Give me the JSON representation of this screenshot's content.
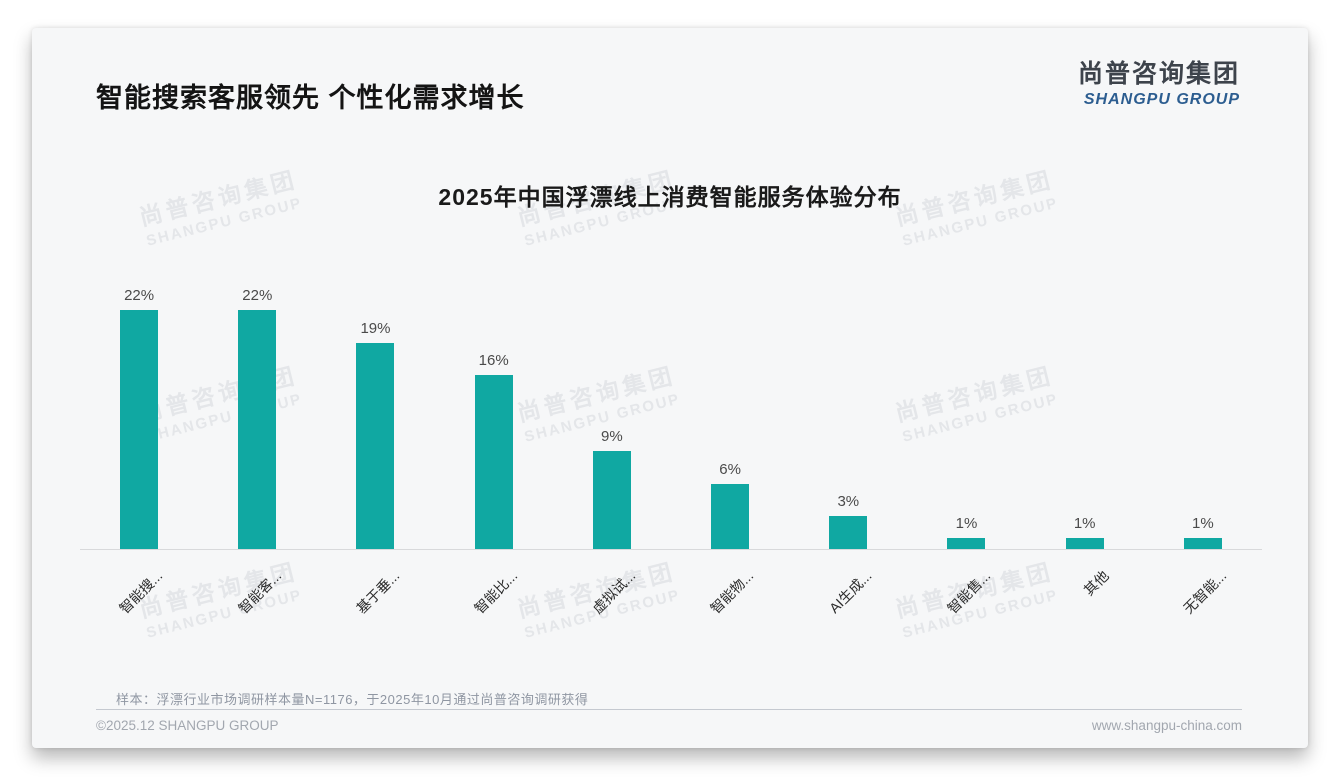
{
  "header": {
    "title": "智能搜索客服领先 个性化需求增长",
    "logo_cn": "尚普咨询集团",
    "logo_en": "SHANGPU GROUP"
  },
  "watermark": {
    "line1": "尚普咨询集团",
    "line2": "SHANGPU GROUP"
  },
  "chart_data": {
    "type": "bar",
    "title": "2025年中国浮漂线上消费智能服务体验分布",
    "categories": [
      "智能搜...",
      "智能客...",
      "基于垂...",
      "智能比...",
      "虚拟试...",
      "智能物...",
      "AI生成...",
      "智能售...",
      "其他",
      "无智能..."
    ],
    "values": [
      22,
      22,
      19,
      16,
      9,
      6,
      3,
      1,
      1,
      1
    ],
    "value_labels": [
      "22%",
      "22%",
      "19%",
      "16%",
      "9%",
      "6%",
      "3%",
      "1%",
      "1%",
      "1%"
    ],
    "unit": "%",
    "xlabel": "",
    "ylabel": "",
    "ylim": [
      0,
      24
    ],
    "bar_color": "#10a8a2",
    "grid": false,
    "legend": false
  },
  "note": "样本：浮漂行业市场调研样本量N=1176，于2025年10月通过尚普咨询调研获得",
  "footer": {
    "left": "©2025.12 SHANGPU GROUP",
    "right": "www.shangpu-china.com"
  }
}
